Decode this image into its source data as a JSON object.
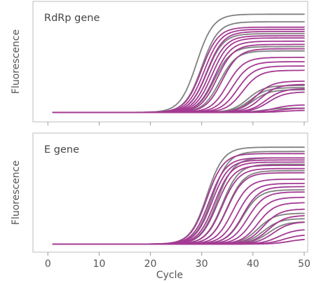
{
  "chart_data": [
    {
      "type": "line",
      "title": "RdRp gene",
      "ylabel": "Fluorescence",
      "xlabel": "",
      "x_ticks": [],
      "xlim": [
        -1,
        50
      ],
      "ylim": [
        0,
        1
      ],
      "colors": {
        "positive": "#a43a93",
        "control": "#808080"
      },
      "series": [
        {
          "group": "control",
          "ct": 29.0,
          "plateau": 0.92
        },
        {
          "group": "control",
          "ct": 30.0,
          "plateau": 0.85
        },
        {
          "group": "control",
          "ct": 31.0,
          "plateau": 0.74
        },
        {
          "group": "control",
          "ct": 32.5,
          "plateau": 0.62
        },
        {
          "group": "control",
          "ct": 33.5,
          "plateau": 0.58
        },
        {
          "group": "control",
          "ct": 39.0,
          "plateau": 0.26
        },
        {
          "group": "control",
          "ct": 39.5,
          "plateau": 0.24
        },
        {
          "group": "control",
          "ct": 40.0,
          "plateau": 0.22
        },
        {
          "group": "control",
          "ct": 42.0,
          "plateau": 0.05
        },
        {
          "group": "positive",
          "ct": 30.0,
          "plateau": 0.8
        },
        {
          "group": "positive",
          "ct": 30.5,
          "plateau": 0.78
        },
        {
          "group": "positive",
          "ct": 31.0,
          "plateau": 0.76
        },
        {
          "group": "positive",
          "ct": 31.5,
          "plateau": 0.72
        },
        {
          "group": "positive",
          "ct": 32.0,
          "plateau": 0.7
        },
        {
          "group": "positive",
          "ct": 32.5,
          "plateau": 0.67
        },
        {
          "group": "positive",
          "ct": 33.0,
          "plateau": 0.64
        },
        {
          "group": "positive",
          "ct": 34.0,
          "plateau": 0.6
        },
        {
          "group": "positive",
          "ct": 35.0,
          "plateau": 0.52
        },
        {
          "group": "positive",
          "ct": 36.0,
          "plateau": 0.48
        },
        {
          "group": "positive",
          "ct": 37.0,
          "plateau": 0.44
        },
        {
          "group": "positive",
          "ct": 38.0,
          "plateau": 0.4
        },
        {
          "group": "positive",
          "ct": 40.5,
          "plateau": 0.3
        },
        {
          "group": "positive",
          "ct": 41.5,
          "plateau": 0.27
        },
        {
          "group": "positive",
          "ct": 42.5,
          "plateau": 0.23
        },
        {
          "group": "positive",
          "ct": 43.0,
          "plateau": 0.2
        },
        {
          "group": "positive",
          "ct": 44.0,
          "plateau": 0.08
        },
        {
          "group": "positive",
          "ct": 45.0,
          "plateau": 0.05
        },
        {
          "group": "positive",
          "ct": 46.0,
          "plateau": 0.03
        }
      ]
    },
    {
      "type": "line",
      "title": "E gene",
      "ylabel": "Fluorescence",
      "xlabel": "Cycle",
      "x_ticks": [
        0,
        10,
        20,
        30,
        40,
        50
      ],
      "xlim": [
        -1,
        50
      ],
      "ylim": [
        0,
        1
      ],
      "colors": {
        "positive": "#a43a93",
        "control": "#808080"
      },
      "series": [
        {
          "group": "control",
          "ct": 31.0,
          "plateau": 0.92
        },
        {
          "group": "control",
          "ct": 32.0,
          "plateau": 0.88
        },
        {
          "group": "control",
          "ct": 33.0,
          "plateau": 0.82
        },
        {
          "group": "control",
          "ct": 34.0,
          "plateau": 0.76
        },
        {
          "group": "control",
          "ct": 35.0,
          "plateau": 0.7
        },
        {
          "group": "control",
          "ct": 38.0,
          "plateau": 0.52
        },
        {
          "group": "control",
          "ct": 41.0,
          "plateau": 0.3
        },
        {
          "group": "control",
          "ct": 42.0,
          "plateau": 0.25
        },
        {
          "group": "control",
          "ct": 43.0,
          "plateau": 0.22
        },
        {
          "group": "positive",
          "ct": 31.0,
          "plateau": 0.86
        },
        {
          "group": "positive",
          "ct": 31.5,
          "plateau": 0.82
        },
        {
          "group": "positive",
          "ct": 32.0,
          "plateau": 0.8
        },
        {
          "group": "positive",
          "ct": 32.5,
          "plateau": 0.78
        },
        {
          "group": "positive",
          "ct": 33.0,
          "plateau": 0.75
        },
        {
          "group": "positive",
          "ct": 34.0,
          "plateau": 0.72
        },
        {
          "group": "positive",
          "ct": 35.0,
          "plateau": 0.68
        },
        {
          "group": "positive",
          "ct": 36.0,
          "plateau": 0.62
        },
        {
          "group": "positive",
          "ct": 37.0,
          "plateau": 0.58
        },
        {
          "group": "positive",
          "ct": 38.0,
          "plateau": 0.55
        },
        {
          "group": "positive",
          "ct": 39.0,
          "plateau": 0.5
        },
        {
          "group": "positive",
          "ct": 40.0,
          "plateau": 0.45
        },
        {
          "group": "positive",
          "ct": 41.0,
          "plateau": 0.4
        },
        {
          "group": "positive",
          "ct": 42.0,
          "plateau": 0.34
        },
        {
          "group": "positive",
          "ct": 43.0,
          "plateau": 0.28
        },
        {
          "group": "positive",
          "ct": 44.0,
          "plateau": 0.22
        },
        {
          "group": "positive",
          "ct": 45.0,
          "plateau": 0.15
        },
        {
          "group": "positive",
          "ct": 46.0,
          "plateau": 0.1
        },
        {
          "group": "positive",
          "ct": 47.0,
          "plateau": 0.06
        }
      ]
    }
  ]
}
